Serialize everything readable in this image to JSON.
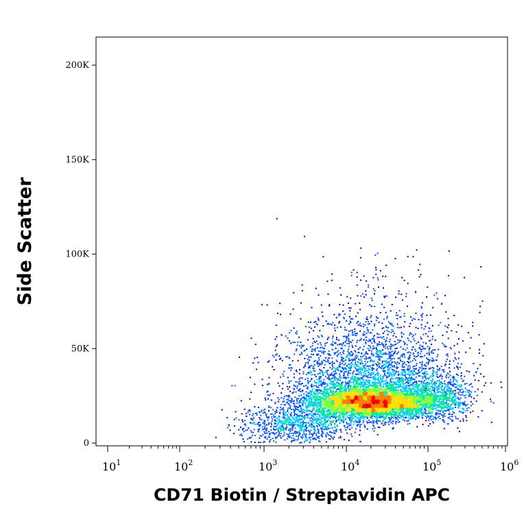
{
  "chart_data": {
    "type": "scatter",
    "title": "",
    "xlabel": "CD71 Biotin / Streptavidin APC",
    "ylabel": "Side Scatter",
    "x_scale": "log",
    "xlim": [
      10,
      1000000
    ],
    "ylim": [
      0,
      215000
    ],
    "x_ticks": [
      {
        "base": "10",
        "exp": "1"
      },
      {
        "base": "10",
        "exp": "2"
      },
      {
        "base": "10",
        "exp": "3"
      },
      {
        "base": "10",
        "exp": "4"
      },
      {
        "base": "10",
        "exp": "5"
      },
      {
        "base": "10",
        "exp": "6"
      }
    ],
    "y_ticks": [
      {
        "label": "0",
        "value": 0
      },
      {
        "label": "50K",
        "value": 50000
      },
      {
        "label": "100K",
        "value": 100000
      },
      {
        "label": "150K",
        "value": 150000
      },
      {
        "label": "200K",
        "value": 200000
      }
    ],
    "grid": false,
    "legend": "none",
    "density_colormap": [
      "#0000c8",
      "#0050ff",
      "#00c8ff",
      "#00e8a0",
      "#80ff40",
      "#ffe000",
      "#ff8000",
      "#ff0000"
    ],
    "populations": [
      {
        "center_x": 20000,
        "center_y": 22000,
        "spread_log_x": 0.42,
        "spread_y": 4500,
        "relative_density": 1.0
      },
      {
        "center_x": 20000,
        "center_y": 50000,
        "spread_log_x": 0.55,
        "spread_y": 25000,
        "relative_density": 0.35
      },
      {
        "center_x": 2500,
        "center_y": 10000,
        "spread_log_x": 0.35,
        "spread_y": 5000,
        "relative_density": 0.15
      },
      {
        "center_x": 150000,
        "center_y": 25000,
        "spread_log_x": 0.2,
        "spread_y": 6000,
        "relative_density": 0.1
      }
    ]
  }
}
